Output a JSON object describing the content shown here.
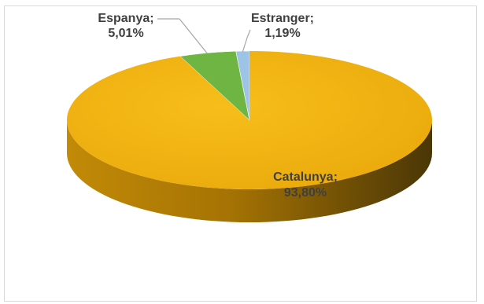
{
  "chart_data": {
    "type": "pie",
    "style": "3d",
    "categories": [
      "Catalunya",
      "Espanya",
      "Estranger"
    ],
    "values": [
      93.8,
      5.01,
      1.19
    ],
    "data_labels": [
      {
        "name": "Catalunya;",
        "value": "93,80%"
      },
      {
        "name": "Espanya;",
        "value": "5,01%"
      },
      {
        "name": "Estranger;",
        "value": "1,19%"
      }
    ],
    "colors": [
      "#f4b815",
      "#6eb544",
      "#9dc3e6"
    ],
    "legend": "none",
    "title": ""
  }
}
